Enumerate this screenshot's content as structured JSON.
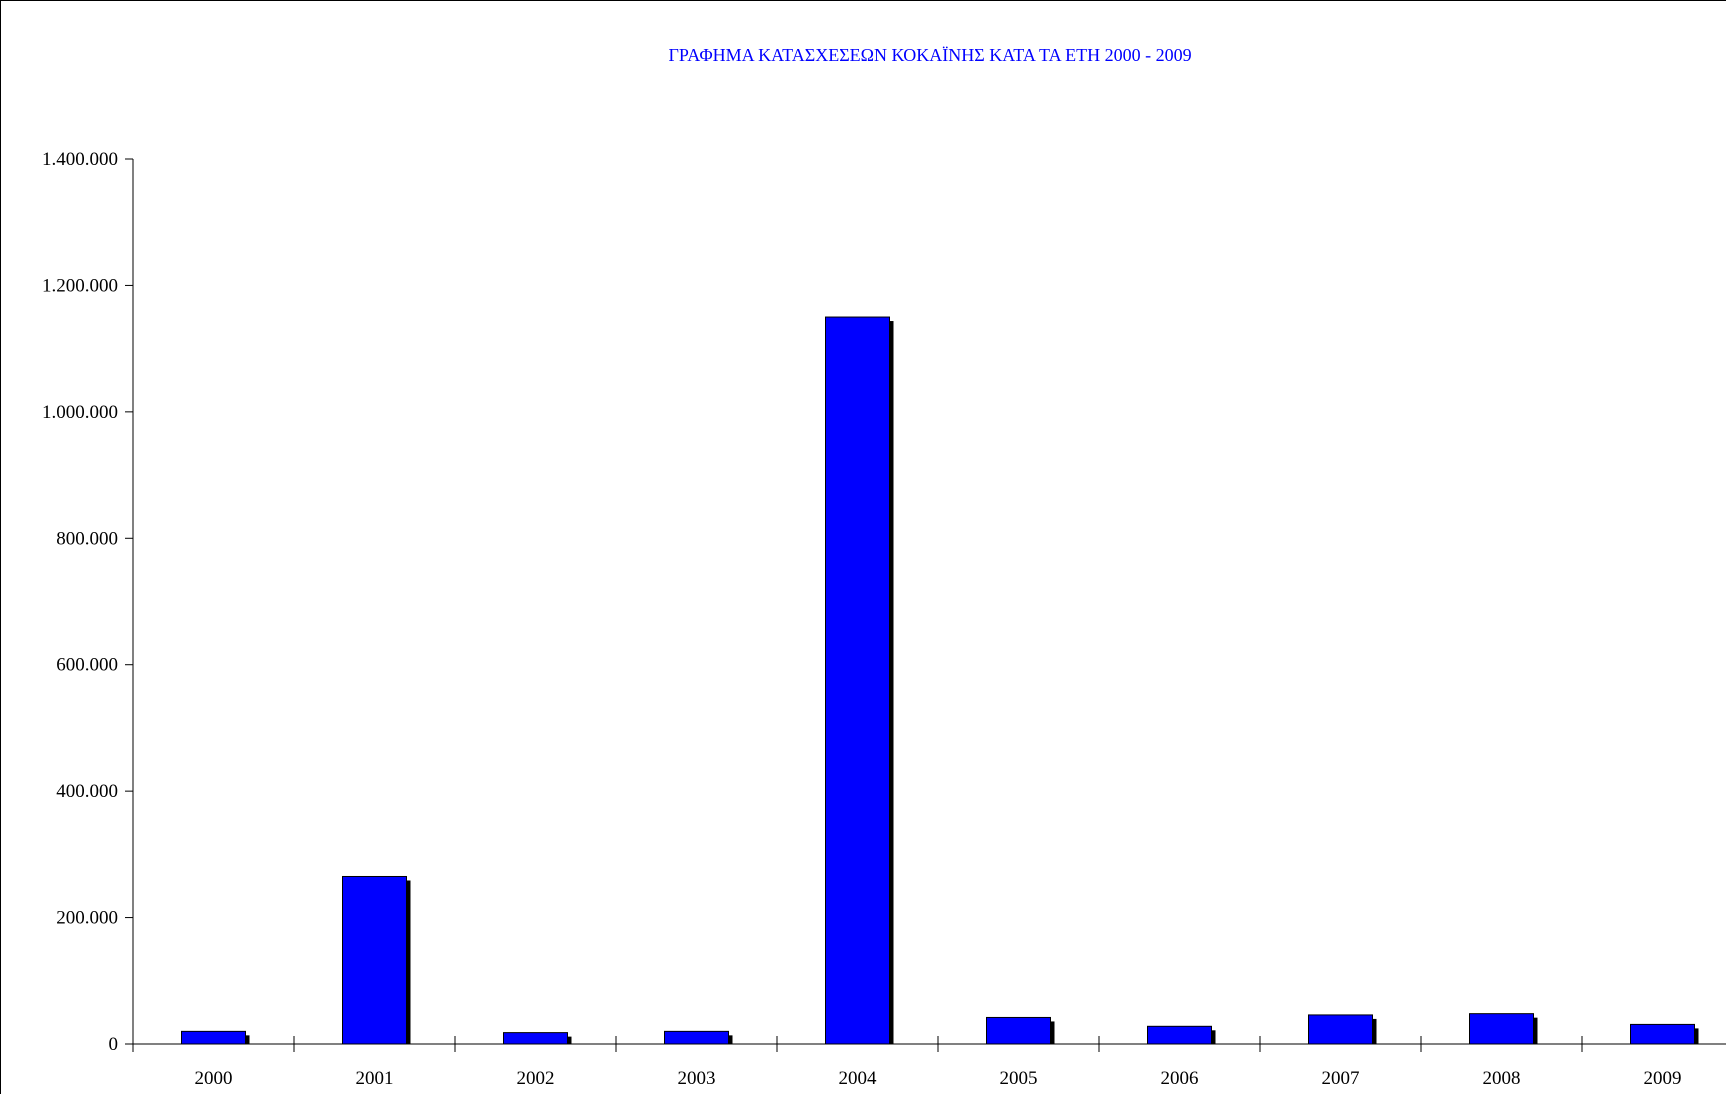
{
  "chart_data": {
    "type": "bar",
    "title": "ΓΡΑΦΗΜΑ ΚΑΤΑΣΧΕΣΕΩΝ ΚΟΚΑΪΝΗΣ ΚΑΤΑ ΤΑ ΕΤΗ 2000 - 2009",
    "xlabel": "",
    "ylabel": "",
    "categories": [
      "2000",
      "2001",
      "2002",
      "2003",
      "2004",
      "2005",
      "2006",
      "2007",
      "2008",
      "2009"
    ],
    "values": [
      20000,
      265000,
      18000,
      20000,
      1150000,
      42000,
      28000,
      46000,
      48000,
      31000
    ],
    "ylim": [
      0,
      1400000
    ],
    "yticks": [
      0,
      200000,
      400000,
      600000,
      800000,
      1000000,
      1200000,
      1400000
    ],
    "ytick_labels": [
      "0",
      "200.000",
      "400.000",
      "600.000",
      "800.000",
      "1.000.000",
      "1.200.000",
      "1.400.000"
    ],
    "grid": false,
    "legend": "none",
    "colors": {
      "bar": "#0000ff",
      "bar_shadow": "#000000",
      "title": "#0000ff",
      "axis": "#000000"
    }
  }
}
